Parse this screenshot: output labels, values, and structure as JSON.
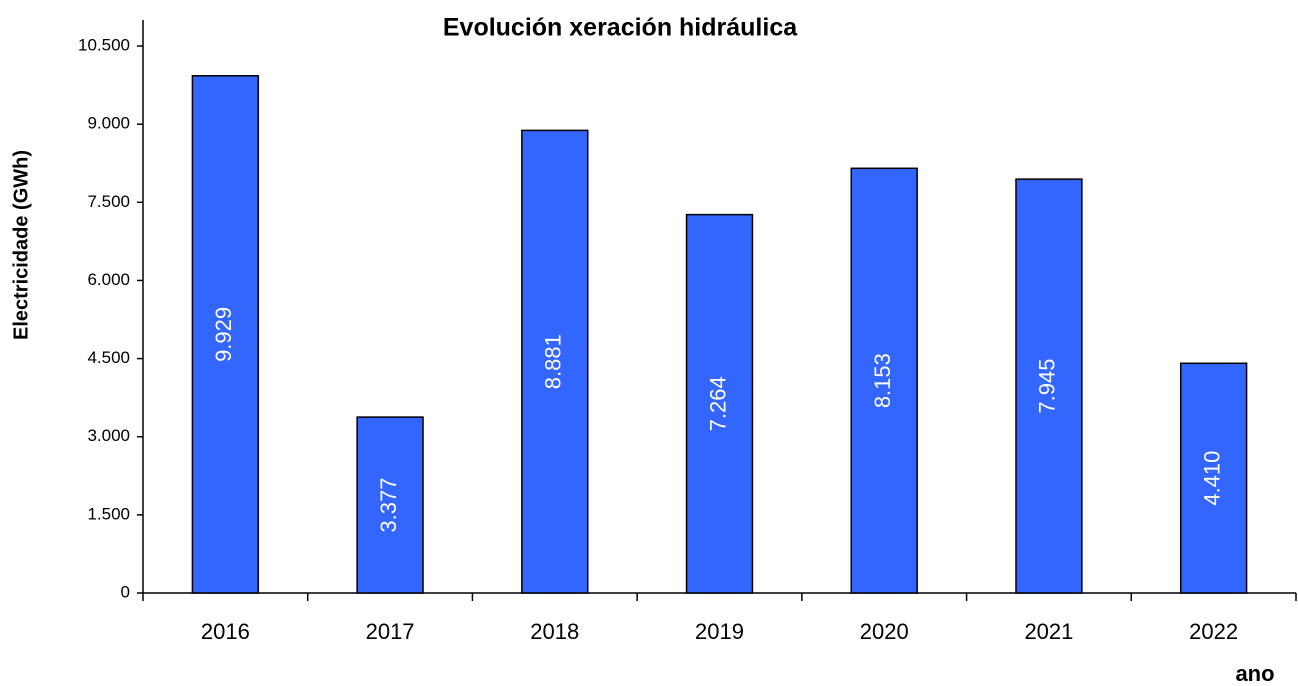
{
  "chart_data": {
    "type": "bar",
    "title": "Evolución xeración hidráulica",
    "y_label": "Electricidade (GWh)",
    "x_label": "ano",
    "categories": [
      "2016",
      "2017",
      "2018",
      "2019",
      "2020",
      "2021",
      "2022"
    ],
    "values": [
      9929,
      3377,
      8881,
      7264,
      8153,
      7945,
      4410
    ],
    "value_labels": [
      "9.929",
      "3.377",
      "8.881",
      "7.264",
      "8.153",
      "7.945",
      "4.410"
    ],
    "color": "#3366ff",
    "ylim": [
      0,
      11000
    ],
    "yticks": [
      0,
      {
        "value": 1500,
        "label": "1.500"
      },
      {
        "value": 3000,
        "label": "3.000"
      },
      {
        "value": 4500,
        "label": "4.500"
      },
      {
        "value": 6000,
        "label": "6.000"
      },
      {
        "value": 7500,
        "label": "7.500"
      },
      {
        "value": 9000,
        "label": "9.000"
      },
      {
        "value": 10500,
        "label": "10.500"
      }
    ],
    "grid": false
  }
}
